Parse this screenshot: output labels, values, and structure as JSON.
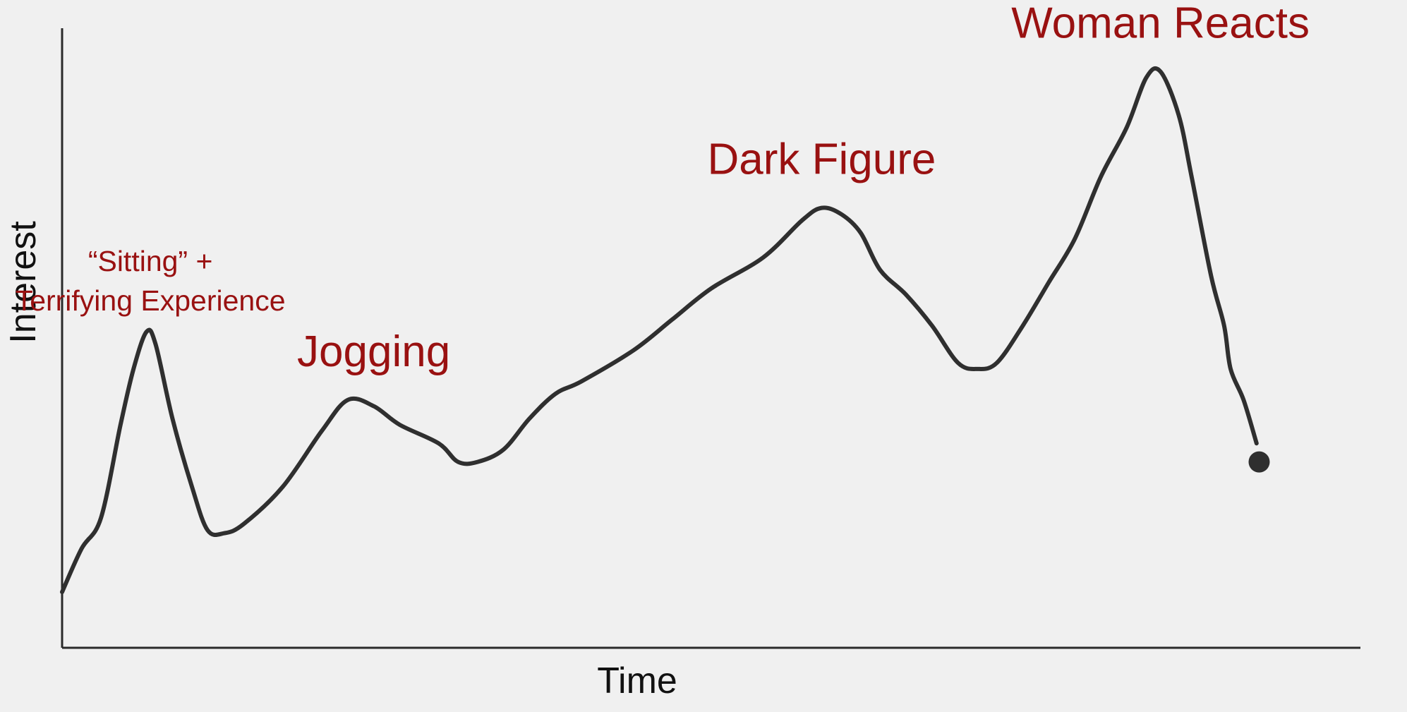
{
  "chart_data": {
    "type": "line",
    "title": "",
    "xlabel": "Time",
    "ylabel": "Interest",
    "grid": false,
    "legend": "none",
    "xlim": [
      0,
      100
    ],
    "ylim": [
      0,
      100
    ],
    "series": [
      {
        "values": [
          [
            0,
            9
          ],
          [
            1.5,
            16
          ],
          [
            3,
            21
          ],
          [
            4.5,
            36
          ],
          [
            5.5,
            45
          ],
          [
            6.5,
            51
          ],
          [
            7.2,
            49
          ],
          [
            8.5,
            37
          ],
          [
            10,
            26
          ],
          [
            11.2,
            19
          ],
          [
            12.5,
            18.5
          ],
          [
            14,
            20
          ],
          [
            17,
            26
          ],
          [
            20,
            35
          ],
          [
            22,
            40
          ],
          [
            24,
            39
          ],
          [
            26,
            36
          ],
          [
            29,
            33
          ],
          [
            30.5,
            30
          ],
          [
            32,
            30
          ],
          [
            34,
            32
          ],
          [
            36,
            37
          ],
          [
            38,
            41
          ],
          [
            40,
            43
          ],
          [
            44,
            48
          ],
          [
            47,
            53
          ],
          [
            50,
            58
          ],
          [
            54,
            63
          ],
          [
            57,
            69
          ],
          [
            58.5,
            71
          ],
          [
            60,
            70
          ],
          [
            61.5,
            67
          ],
          [
            63,
            61
          ],
          [
            65,
            57
          ],
          [
            67,
            52
          ],
          [
            69,
            46
          ],
          [
            70.5,
            45
          ],
          [
            72,
            46
          ],
          [
            74,
            52
          ],
          [
            76,
            59
          ],
          [
            78,
            66
          ],
          [
            80,
            76
          ],
          [
            82,
            84
          ],
          [
            83.5,
            92
          ],
          [
            84.6,
            93
          ],
          [
            86,
            86
          ],
          [
            87,
            76
          ],
          [
            88.5,
            60
          ],
          [
            89.5,
            52
          ],
          [
            90,
            45
          ],
          [
            91,
            40
          ],
          [
            92,
            33
          ]
        ]
      }
    ],
    "end_marker": [
      92.2,
      30
    ],
    "annotations": [
      {
        "lines": [
          "“Sitting” +",
          "Terrifying Experience"
        ],
        "x": 6.8,
        "y": 51,
        "color": "#991111"
      },
      {
        "lines": [
          "Jogging"
        ],
        "x": 24,
        "y": 40,
        "color": "#991111"
      },
      {
        "lines": [
          "Dark Figure"
        ],
        "x": 58.5,
        "y": 71,
        "color": "#991111"
      },
      {
        "lines": [
          "Woman Reacts"
        ],
        "x": 84.6,
        "y": 93,
        "color": "#991111"
      }
    ],
    "colors": {
      "line": "#2f2f2f",
      "axis": "#2a2a2a",
      "annotation": "#991111",
      "background": "#f0f0f0"
    }
  }
}
